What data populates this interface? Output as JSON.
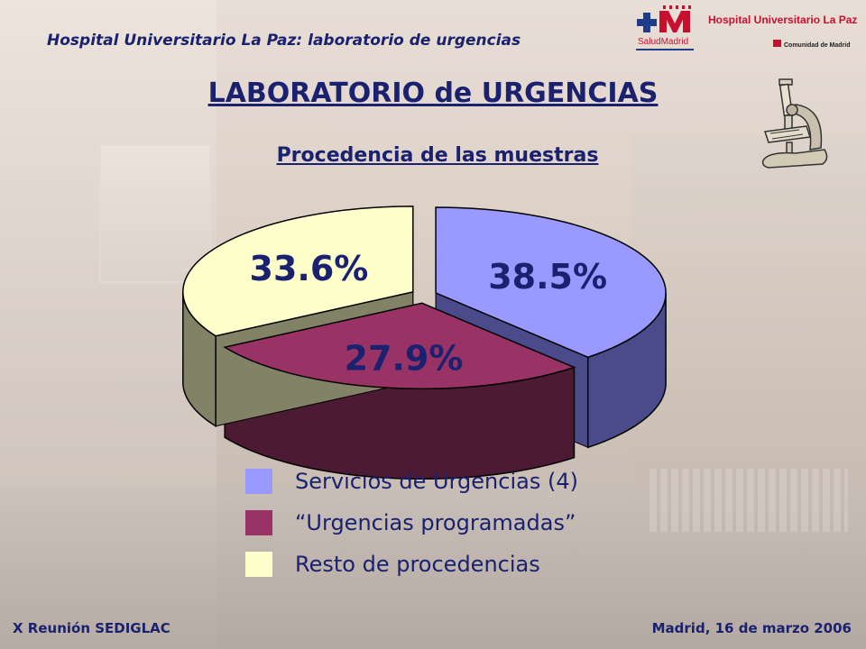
{
  "header": {
    "institution_title": "Hospital Universitario La Paz: laboratorio de urgencias",
    "logo": {
      "hospital_name": "Hospital Universitario La Paz",
      "brand": "SaludMadrid",
      "region": "Comunidad de Madrid"
    }
  },
  "title": "LABORATORIO de URGENCIAS",
  "subtitle": "Procedencia de las muestras",
  "chart_data": {
    "type": "pie",
    "slices": [
      {
        "label": "Servicios de Urgencias (4)",
        "value": 38.5,
        "value_label": "38.5%",
        "color": "#9999ff",
        "side_color": "#4b4b8c"
      },
      {
        "label": "“Urgencias programadas”",
        "value": 27.9,
        "value_label": "27.9%",
        "color": "#993366",
        "side_color": "#4d1a33"
      },
      {
        "label": "Resto de procedencias",
        "value": 33.6,
        "value_label": "33.6%",
        "color": "#ffffcc",
        "side_color": "#828266"
      }
    ],
    "legend_position": "bottom",
    "exploded": true,
    "three_d": true
  },
  "footer": {
    "left": "X Reunión SEDIGLAC",
    "right": "Madrid, 16 de marzo 2006"
  },
  "colors": {
    "text_primary": "#1a2270",
    "logo_red": "#c8102e",
    "logo_blue": "#1f3b8a"
  },
  "icons": [
    "microscope-icon",
    "hospital-logo"
  ]
}
